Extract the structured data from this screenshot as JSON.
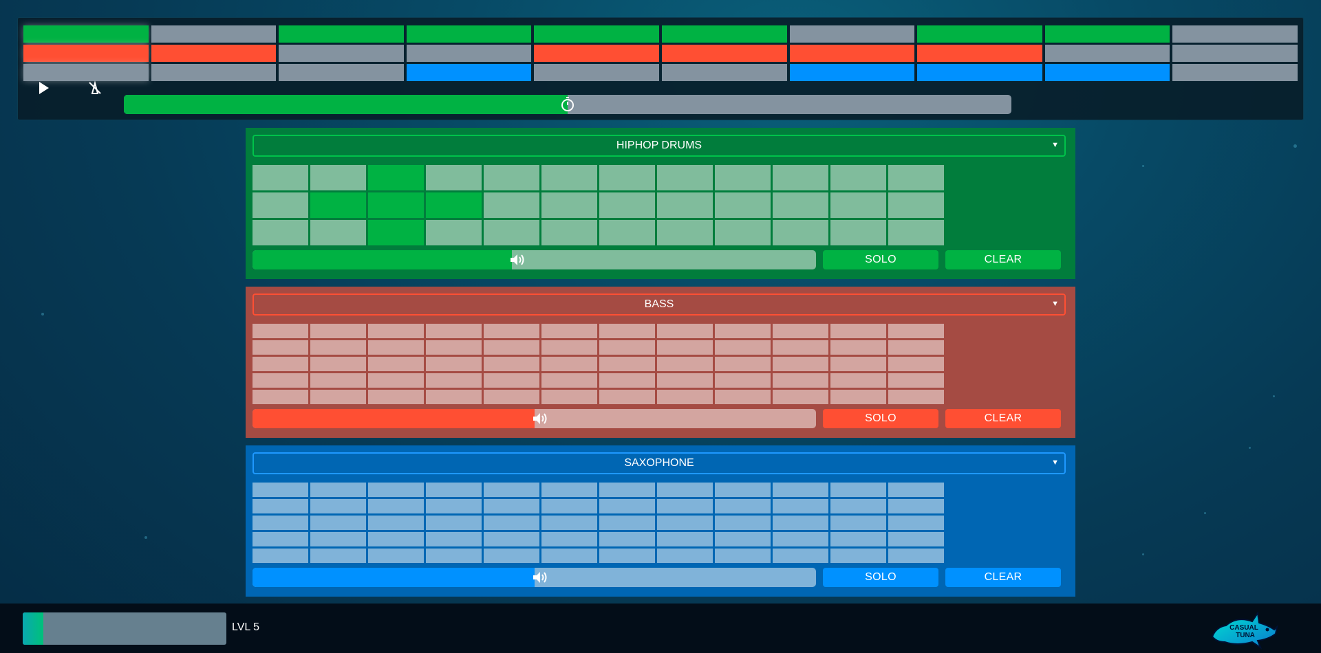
{
  "overview": {
    "rows": [
      [
        1,
        0,
        1,
        1,
        1,
        1,
        0,
        1,
        1,
        0
      ],
      [
        1,
        1,
        0,
        0,
        1,
        1,
        1,
        1,
        0,
        0
      ],
      [
        0,
        0,
        0,
        1,
        0,
        0,
        1,
        1,
        1,
        0
      ]
    ],
    "current_step": 0,
    "progress": 0.5
  },
  "controls": {
    "play_icon": "play-icon",
    "metronome_icon": "metronome-muted-icon",
    "timer_icon": "stopwatch-icon"
  },
  "instruments": [
    {
      "name": "HIPHOP DRUMS",
      "color": "#00b243",
      "volume": 0.46,
      "solo_label": "SOLO",
      "clear_label": "CLEAR",
      "pads": [
        [
          0,
          0,
          1,
          0,
          0,
          0,
          0,
          0,
          0,
          0,
          0,
          0
        ],
        [
          0,
          1,
          1,
          1,
          0,
          0,
          0,
          0,
          0,
          0,
          0,
          0
        ],
        [
          0,
          0,
          1,
          0,
          0,
          0,
          0,
          0,
          0,
          0,
          0,
          0
        ]
      ]
    },
    {
      "name": "BASS",
      "color": "#ff4f33",
      "volume": 0.5,
      "solo_label": "SOLO",
      "clear_label": "CLEAR",
      "pads": [
        [
          0,
          0,
          0,
          0,
          0,
          0,
          0,
          0,
          0,
          0,
          0,
          0
        ],
        [
          0,
          0,
          0,
          0,
          0,
          0,
          0,
          0,
          0,
          0,
          0,
          0
        ],
        [
          0,
          0,
          0,
          0,
          0,
          0,
          0,
          0,
          0,
          0,
          0,
          0
        ],
        [
          0,
          0,
          0,
          0,
          0,
          0,
          0,
          0,
          0,
          0,
          0,
          0
        ],
        [
          0,
          0,
          0,
          0,
          0,
          0,
          0,
          0,
          0,
          0,
          0,
          0
        ]
      ]
    },
    {
      "name": "SAXOPHONE",
      "color": "#0091ff",
      "volume": 0.5,
      "solo_label": "SOLO",
      "clear_label": "CLEAR",
      "pads": [
        [
          0,
          0,
          0,
          0,
          0,
          0,
          0,
          0,
          0,
          0,
          0,
          0
        ],
        [
          0,
          0,
          0,
          0,
          0,
          0,
          0,
          0,
          0,
          0,
          0,
          0
        ],
        [
          0,
          0,
          0,
          0,
          0,
          0,
          0,
          0,
          0,
          0,
          0,
          0
        ],
        [
          0,
          0,
          0,
          0,
          0,
          0,
          0,
          0,
          0,
          0,
          0,
          0
        ],
        [
          0,
          0,
          0,
          0,
          0,
          0,
          0,
          0,
          0,
          0,
          0,
          0
        ]
      ]
    }
  ],
  "footer": {
    "xp_progress": 0.1,
    "level_label": "LVL 5",
    "logo_text": "CASUAL TUNA",
    "logo_icon": "tuna-logo"
  }
}
